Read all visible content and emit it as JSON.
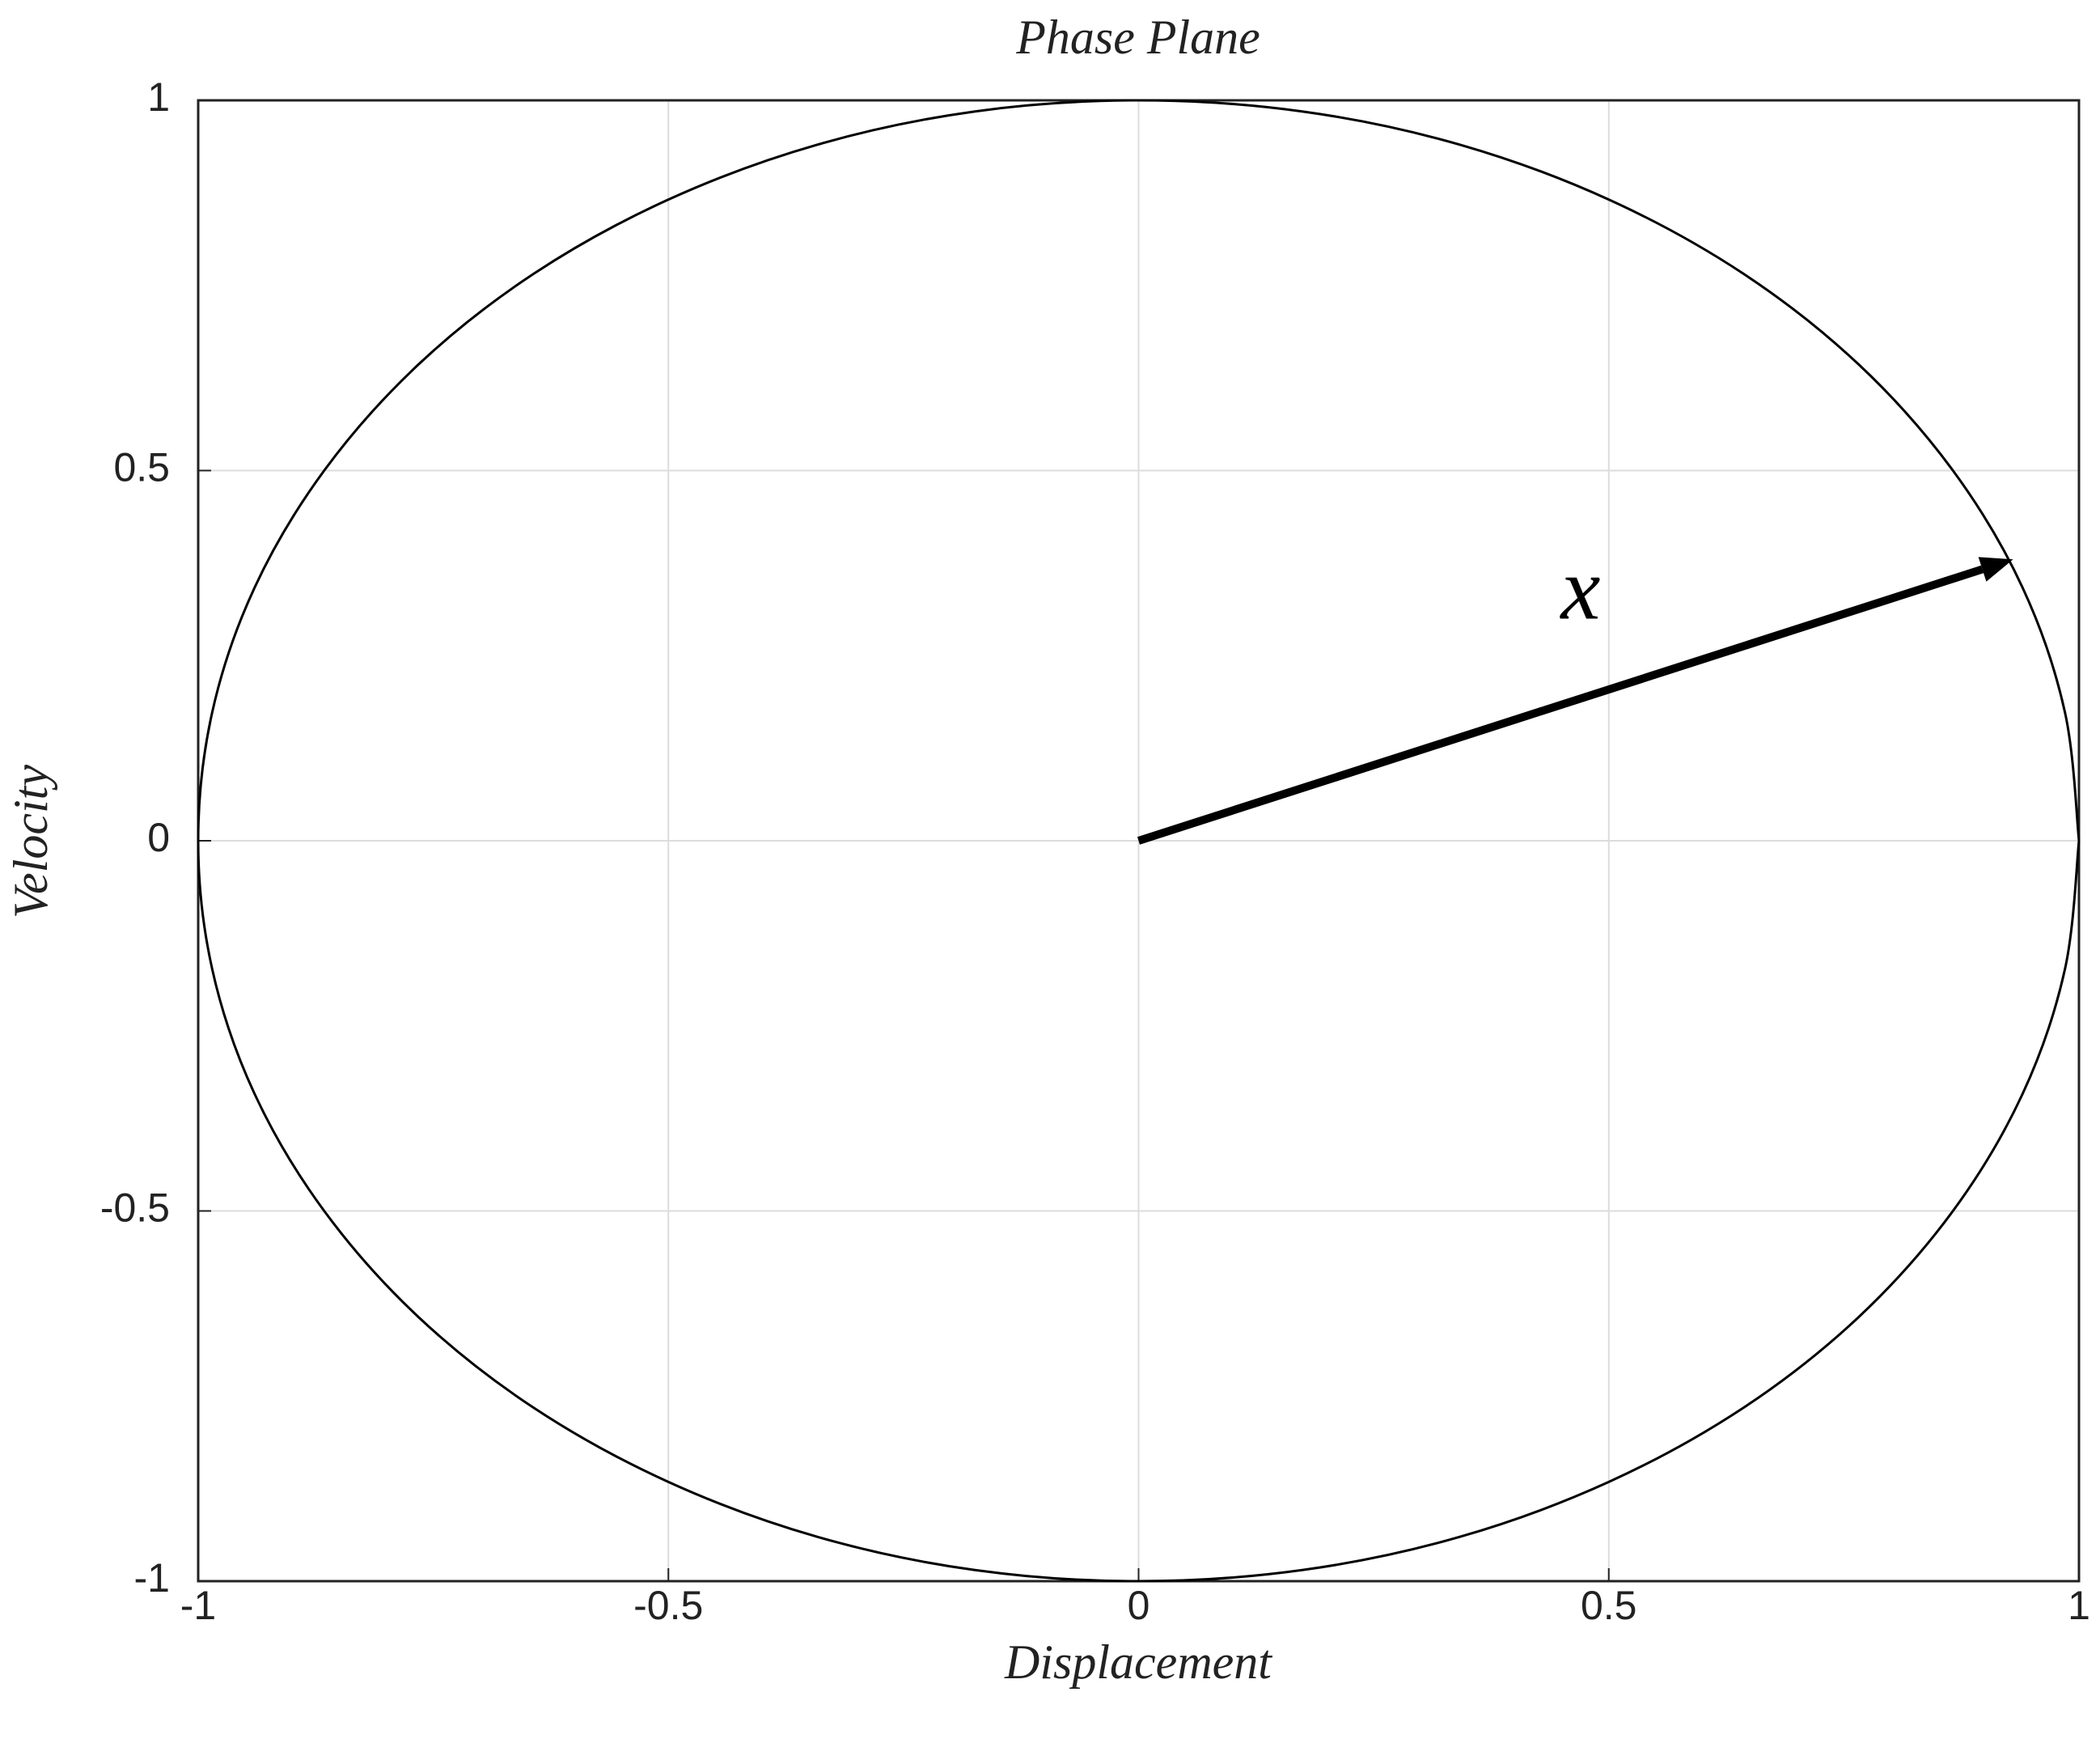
{
  "chart_data": {
    "type": "line",
    "title": "Phase Plane",
    "x_label": "Displacement",
    "y_label": "Velocity",
    "xlim": [
      -1,
      1
    ],
    "ylim": [
      -1,
      1
    ],
    "xticks": [
      -1,
      -0.5,
      0,
      0.5,
      1
    ],
    "yticks": [
      -1,
      -0.5,
      0,
      0.5,
      1
    ],
    "grid": true,
    "series": [
      {
        "color": "#000000",
        "x": [
          1,
          0.985,
          0.94,
          0.866,
          0.766,
          0.643,
          0.5,
          0.342,
          0.174,
          0,
          -0.174,
          -0.342,
          -0.5,
          -0.643,
          -0.766,
          -0.866,
          -0.94,
          -0.985,
          -1,
          -0.985,
          -0.94,
          -0.866,
          -0.766,
          -0.643,
          -0.5,
          -0.342,
          -0.174,
          0,
          0.174,
          0.342,
          0.5,
          0.643,
          0.766,
          0.866,
          0.94,
          0.985,
          1
        ],
        "values": [
          0,
          0.174,
          0.342,
          0.5,
          0.643,
          0.766,
          0.866,
          0.94,
          0.985,
          1,
          0.985,
          0.94,
          0.866,
          0.766,
          0.643,
          0.5,
          0.342,
          0.174,
          0,
          -0.174,
          -0.342,
          -0.5,
          -0.643,
          -0.766,
          -0.866,
          -0.94,
          -0.985,
          -1,
          -0.985,
          -0.94,
          -0.866,
          -0.766,
          -0.643,
          -0.5,
          -0.342,
          -0.174,
          0
        ]
      }
    ],
    "arrow": {
      "x": [
        0,
        0.93
      ],
      "y": [
        0,
        0.38
      ],
      "color": "#000000"
    },
    "annotation": {
      "text": "x",
      "x": 0.47,
      "y": 0.3
    }
  }
}
